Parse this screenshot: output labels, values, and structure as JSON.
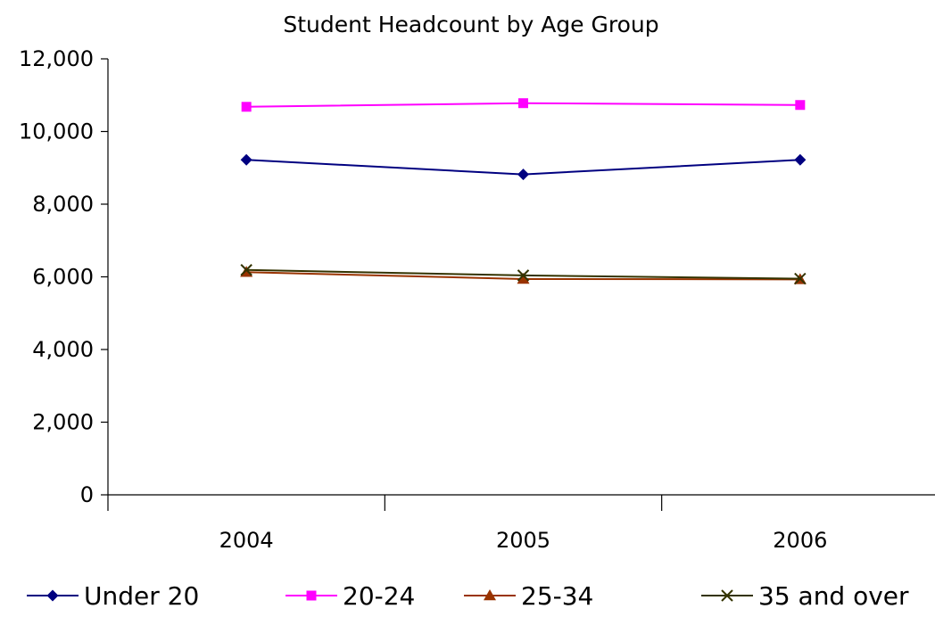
{
  "chart_data": {
    "type": "line",
    "title": "Student Headcount by Age Group",
    "xlabel": "",
    "ylabel": "",
    "categories": [
      "2004",
      "2005",
      "2006"
    ],
    "ylim": [
      0,
      12000
    ],
    "yticks": [
      0,
      2000,
      4000,
      6000,
      8000,
      10000,
      12000
    ],
    "ytick_labels": [
      "0",
      "2,000",
      "4,000",
      "6,000",
      "8,000",
      "10,000",
      "12,000"
    ],
    "grid": false,
    "legend_position": "bottom",
    "series": [
      {
        "name": "Under 20",
        "values": [
          9220,
          8820,
          9220
        ],
        "color": "#000080",
        "marker": "diamond"
      },
      {
        "name": "20-24",
        "values": [
          10680,
          10780,
          10730
        ],
        "color": "#FF00FF",
        "marker": "square"
      },
      {
        "name": "25-34",
        "values": [
          6130,
          5940,
          5930
        ],
        "color": "#993300",
        "marker": "triangle"
      },
      {
        "name": "35 and over",
        "values": [
          6190,
          6040,
          5950
        ],
        "color": "#333300",
        "marker": "x"
      }
    ]
  }
}
